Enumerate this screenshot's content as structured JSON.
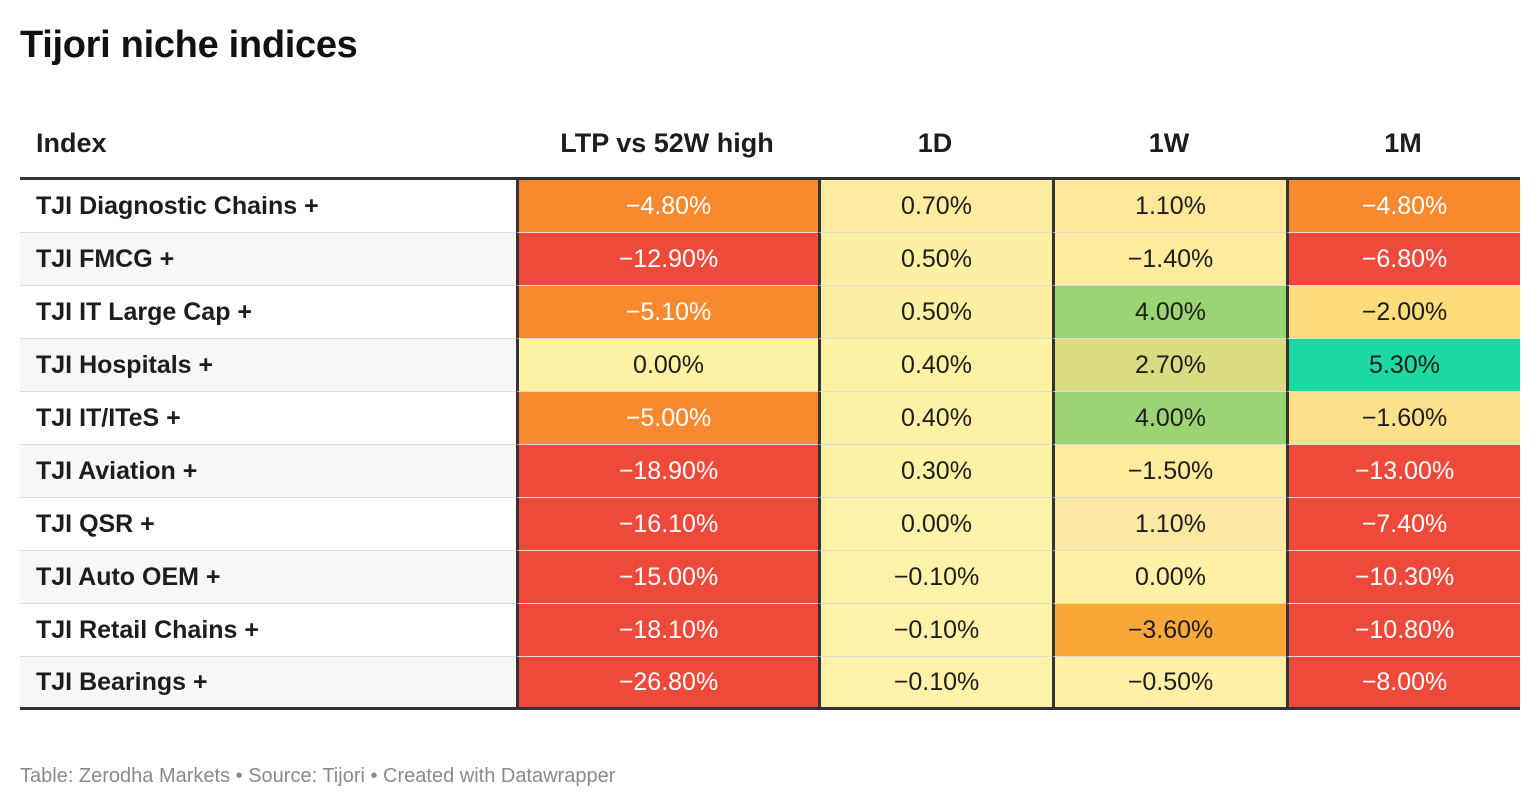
{
  "title": "Tijori niche indices",
  "footer": "Table: Zerodha Markets • Source: Tijori • Created with Datawrapper",
  "colors": {
    "dark_red": "#ee4a3c",
    "orange": "#f7892f",
    "light_orange": "#fba83a",
    "pale_yellow": "#fef2a4",
    "light_yellow": "#fde89a",
    "yellow": "#fddc7c",
    "olive_yellow": "#d9dc82",
    "green": "#9bd573",
    "teal": "#1cd9a2"
  },
  "chart_data": {
    "type": "table",
    "title": "Tijori niche indices",
    "columns": [
      "Index",
      "LTP vs 52W high",
      "1D",
      "1W",
      "1M"
    ],
    "rows": [
      {
        "index": "TJI Diagnostic Chains +",
        "ltp": "−4.80%",
        "d1": "0.70%",
        "w1": "1.10%",
        "m1": "−4.80%",
        "bg": [
          "#f7892f",
          "#fdeca0",
          "#fde79a",
          "#f7892f"
        ],
        "fg": [
          "#ffffff",
          "#1d1d1d",
          "#1d1d1d",
          "#ffffff"
        ]
      },
      {
        "index": "TJI FMCG +",
        "ltp": "−12.90%",
        "d1": "0.50%",
        "w1": "−1.40%",
        "m1": "−6.80%",
        "bg": [
          "#ee4a3c",
          "#fef0a2",
          "#fdeb9e",
          "#ee4a3c"
        ],
        "fg": [
          "#ffffff",
          "#1d1d1d",
          "#1d1d1d",
          "#ffffff"
        ]
      },
      {
        "index": "TJI IT Large Cap +",
        "ltp": "−5.10%",
        "d1": "0.50%",
        "w1": "4.00%",
        "m1": "−2.00%",
        "bg": [
          "#f7892f",
          "#fef0a2",
          "#9bd573",
          "#fddc7c"
        ],
        "fg": [
          "#ffffff",
          "#1d1d1d",
          "#1d1d1d",
          "#1d1d1d"
        ]
      },
      {
        "index": "TJI Hospitals +",
        "ltp": "0.00%",
        "d1": "0.40%",
        "w1": "2.70%",
        "m1": "5.30%",
        "bg": [
          "#fef2a4",
          "#fef2a4",
          "#d9dc82",
          "#1cd9a2"
        ],
        "fg": [
          "#1d1d1d",
          "#1d1d1d",
          "#1d1d1d",
          "#1d1d1d"
        ]
      },
      {
        "index": "TJI IT/ITeS +",
        "ltp": "−5.00%",
        "d1": "0.40%",
        "w1": "4.00%",
        "m1": "−1.60%",
        "bg": [
          "#f7892f",
          "#fef2a4",
          "#9bd573",
          "#fde08a"
        ],
        "fg": [
          "#ffffff",
          "#1d1d1d",
          "#1d1d1d",
          "#1d1d1d"
        ]
      },
      {
        "index": "TJI Aviation +",
        "ltp": "−18.90%",
        "d1": "0.30%",
        "w1": "−1.50%",
        "m1": "−13.00%",
        "bg": [
          "#ee4a3c",
          "#fef2a4",
          "#fdeb9e",
          "#ee4a3c"
        ],
        "fg": [
          "#ffffff",
          "#1d1d1d",
          "#1d1d1d",
          "#ffffff"
        ]
      },
      {
        "index": "TJI QSR +",
        "ltp": "−16.10%",
        "d1": "0.00%",
        "w1": "1.10%",
        "m1": "−7.40%",
        "bg": [
          "#ee4a3c",
          "#fef3a8",
          "#fce8a2",
          "#ee4a3c"
        ],
        "fg": [
          "#ffffff",
          "#1d1d1d",
          "#1d1d1d",
          "#ffffff"
        ]
      },
      {
        "index": "TJI Auto OEM +",
        "ltp": "−15.00%",
        "d1": "−0.10%",
        "w1": "0.00%",
        "m1": "−10.30%",
        "bg": [
          "#ee4a3c",
          "#fef3a8",
          "#fef0a4",
          "#ee4a3c"
        ],
        "fg": [
          "#ffffff",
          "#1d1d1d",
          "#1d1d1d",
          "#ffffff"
        ]
      },
      {
        "index": "TJI Retail Chains +",
        "ltp": "−18.10%",
        "d1": "−0.10%",
        "w1": "−3.60%",
        "m1": "−10.80%",
        "bg": [
          "#ee4a3c",
          "#fef3a8",
          "#fba83a",
          "#ee4a3c"
        ],
        "fg": [
          "#ffffff",
          "#1d1d1d",
          "#1d1d1d",
          "#ffffff"
        ]
      },
      {
        "index": "TJI Bearings +",
        "ltp": "−26.80%",
        "d1": "−0.10%",
        "w1": "−0.50%",
        "m1": "−8.00%",
        "bg": [
          "#ee4a3c",
          "#fef3a8",
          "#fef0a4",
          "#ee4a3c"
        ],
        "fg": [
          "#ffffff",
          "#1d1d1d",
          "#1d1d1d",
          "#ffffff"
        ]
      }
    ]
  }
}
